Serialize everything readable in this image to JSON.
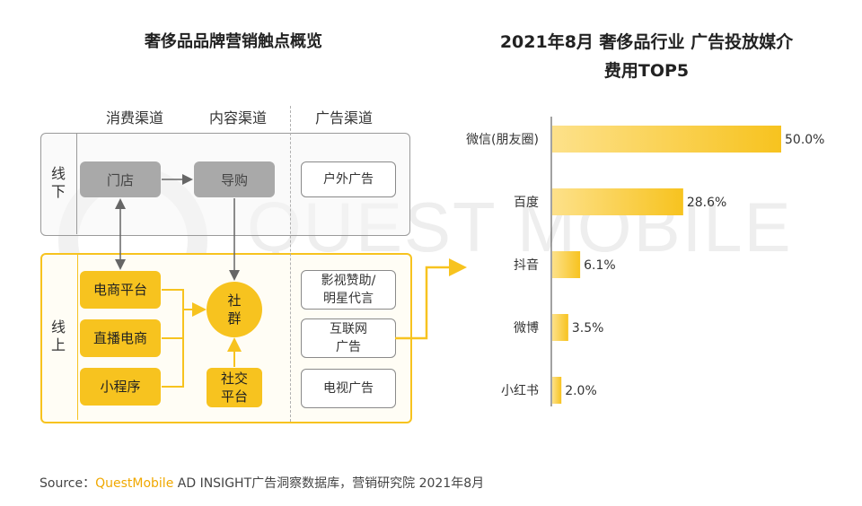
{
  "left_panel": {
    "title": "奢侈品品牌营销触点概览",
    "channels": [
      "消费渠道",
      "内容渠道",
      "广告渠道"
    ],
    "offline_label": "线\n下",
    "online_label": "线\n上",
    "offline_nodes": {
      "store": "门店",
      "guide": "导购",
      "outdoor_ad": "户外广告"
    },
    "online_nodes": {
      "ecommerce": "电商平台",
      "livestream": "直播电商",
      "miniprogram": "小程序",
      "community": "社\n群",
      "social": "社交\n平台",
      "film_ad": "影视赞助/\n明星代言",
      "internet_ad": "互联网\n广告",
      "tv_ad": "电视广告"
    }
  },
  "watermark": "QUEST MOBILE",
  "chart_data": {
    "type": "bar",
    "orientation": "horizontal",
    "title": "2021年8月 奢侈品行业 广告投放媒介费用TOP5",
    "title_lines": [
      "2021年8月 奢侈品行业 广告投放媒介",
      "费用TOP5"
    ],
    "categories": [
      "微信(朋友圈)",
      "百度",
      "抖音",
      "微博",
      "小红书"
    ],
    "values": [
      50.0,
      28.6,
      6.1,
      3.5,
      2.0
    ],
    "labels": [
      "50.0%",
      "28.6%",
      "6.1%",
      "3.5%",
      "2.0%"
    ],
    "xlim": [
      0,
      50
    ],
    "bar_color": "#f7c31f",
    "bar_color_light": "#fde18a"
  },
  "source": {
    "prefix": "Source：",
    "brand": "QuestMobile",
    "text": " AD INSIGHT广告洞察数据库，营销研究院 2021年8月"
  }
}
